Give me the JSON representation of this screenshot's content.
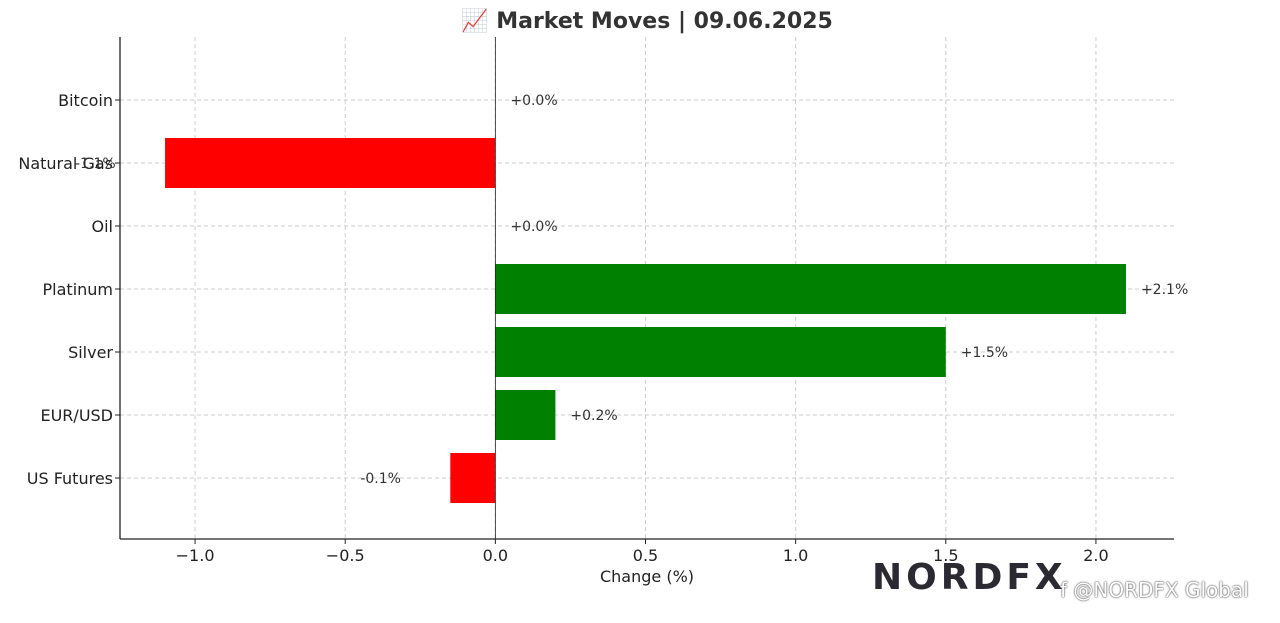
{
  "chart_data": {
    "type": "bar",
    "orientation": "horizontal",
    "title": "📈 Market Moves | 09.06.2025",
    "xlabel": "Change (%)",
    "ylabel": "",
    "xlim": [
      -1.25,
      2.26
    ],
    "grid": true,
    "categories": [
      "Bitcoin",
      "Natural Gas",
      "Oil",
      "Platinum",
      "Silver",
      "EUR/USD",
      "US Futures"
    ],
    "values": [
      0.0,
      -1.1,
      0.0,
      2.1,
      1.5,
      0.2,
      -0.15
    ],
    "value_labels": [
      "+0.0%",
      "-1.1%",
      "+0.0%",
      "+2.1%",
      "+1.5%",
      "+0.2%",
      "-0.1%"
    ],
    "x_ticks": [
      -1.0,
      -0.5,
      0.0,
      0.5,
      1.0,
      1.5,
      2.0
    ],
    "x_tick_labels": [
      "−1.0",
      "−0.5",
      "0.0",
      "0.5",
      "1.0",
      "1.5",
      "2.0"
    ],
    "colors": {
      "positive": "#008000",
      "negative": "#ff0000",
      "grid": "#cccccc"
    }
  },
  "branding": {
    "logo_text": "NORDFX",
    "handle": "f @NORDFX Global",
    "logo_colors": {
      "dark": "#2b2a33",
      "red": "#e8483f",
      "green": "#3fae6a"
    }
  }
}
